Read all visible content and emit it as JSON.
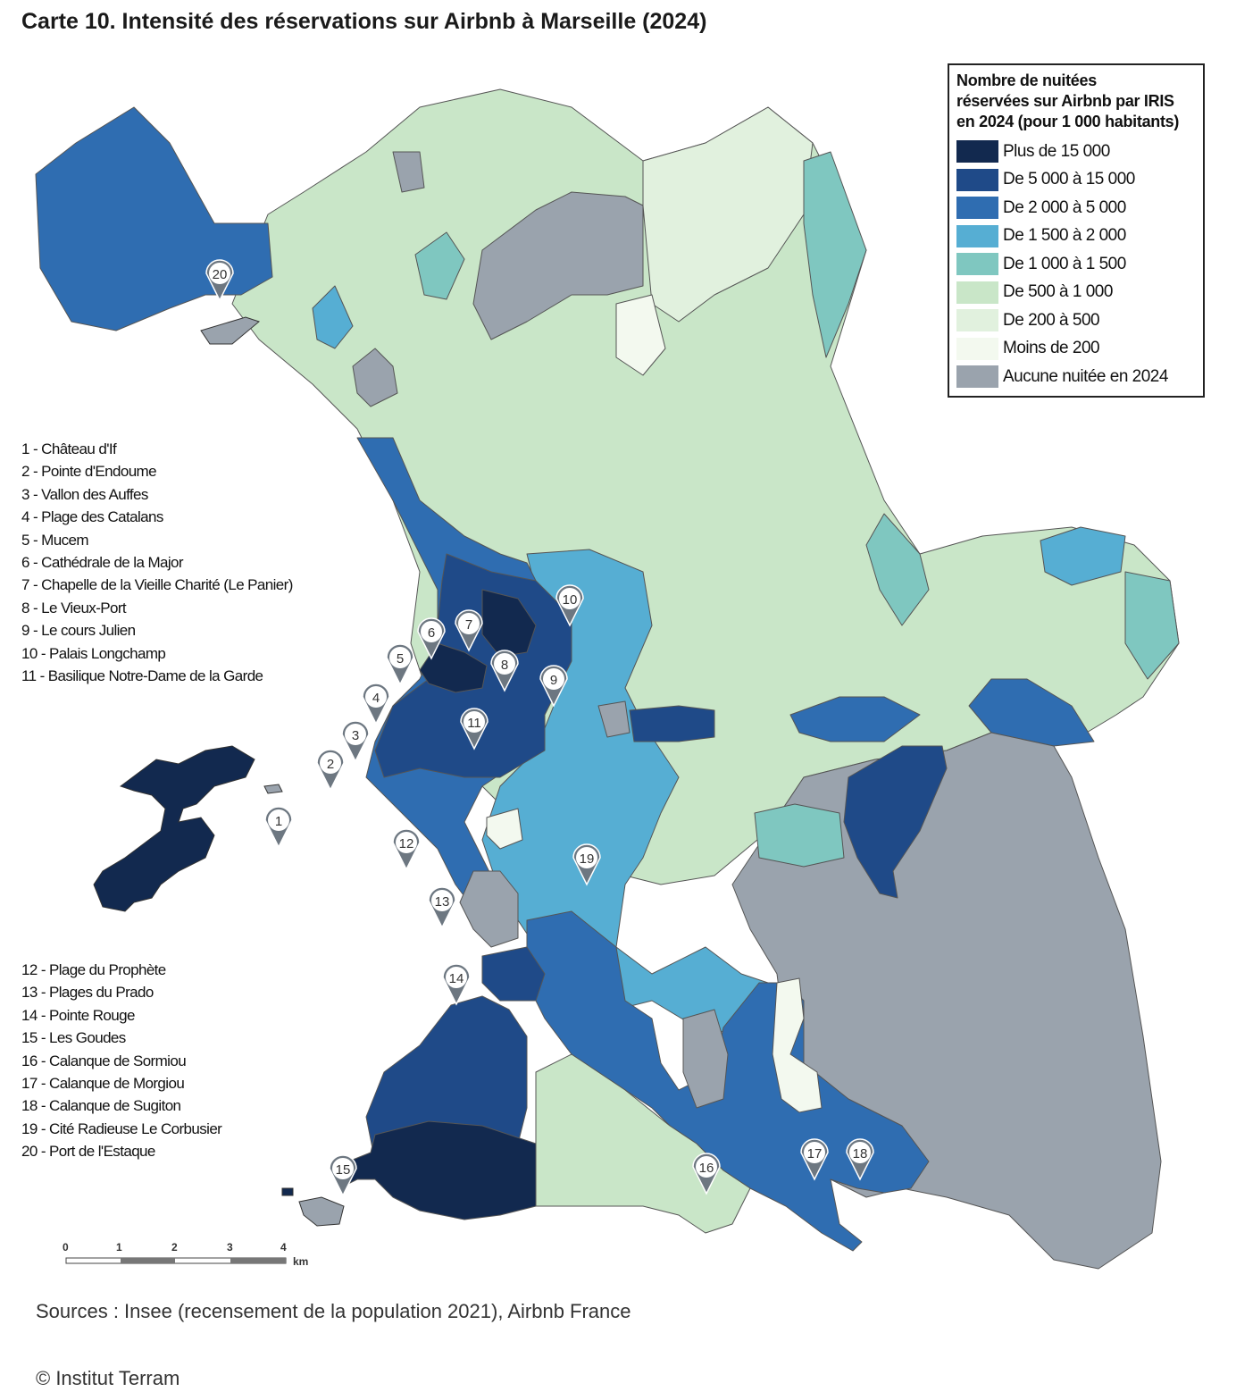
{
  "title": "Carte 10. Intensité des réservations sur Airbnb à Marseille (2024)",
  "legend": {
    "title_lines": [
      "Nombre de nuitées",
      "réservées sur Airbnb par IRIS",
      "en 2024 (pour 1 000 habitants)"
    ],
    "classes": [
      {
        "label": "Plus de 15 000",
        "color": "#12294f"
      },
      {
        "label": "De 5 000 à 15 000",
        "color": "#1f4a88"
      },
      {
        "label": "De 2 000 à 5 000",
        "color": "#2f6db1"
      },
      {
        "label": "De 1 500 à 2 000",
        "color": "#56aed3"
      },
      {
        "label": "De 1 000 à 1 500",
        "color": "#7fc7c0"
      },
      {
        "label": "De 500 à 1 000",
        "color": "#c9e6c8"
      },
      {
        "label": "De 200 à 500",
        "color": "#e1f1de"
      },
      {
        "label": "Moins de 200",
        "color": "#f3f9ef"
      },
      {
        "label": "Aucune nuitée en 2024",
        "color": "#9aa3ad"
      }
    ]
  },
  "places_a": [
    "1 - Château d'If",
    "2 - Pointe d'Endoume",
    "3 - Vallon des Auffes",
    "4 - Plage des Catalans",
    "5 - Mucem",
    "6 - Cathédrale de la Major",
    "7 - Chapelle de la Vieille Charité (Le Panier)",
    "8 - Le Vieux-Port",
    "9 - Le cours Julien",
    "10 - Palais Longchamp",
    "11 - Basilique Notre-Dame de la Garde"
  ],
  "places_b": [
    "12 - Plage du Prophète",
    "13 - Plages du Prado",
    "14 - Pointe Rouge",
    "15 - Les Goudes",
    "16 - Calanque de Sormiou",
    "17 - Calanque de Morgiou",
    "18 - Calanque de Sugiton",
    "19 - Cité Radieuse Le Corbusier",
    "20 - Port de l'Estaque"
  ],
  "markers": [
    "1",
    "2",
    "3",
    "4",
    "5",
    "6",
    "7",
    "8",
    "9",
    "10",
    "11",
    "12",
    "13",
    "14",
    "15",
    "16",
    "17",
    "18",
    "19",
    "20"
  ],
  "scale": {
    "ticks": [
      "0",
      "1",
      "2",
      "3",
      "4"
    ],
    "unit": "km"
  },
  "source": "Sources : Insee (recensement de la population 2021), Airbnb France",
  "credit": "© Institut Terram"
}
